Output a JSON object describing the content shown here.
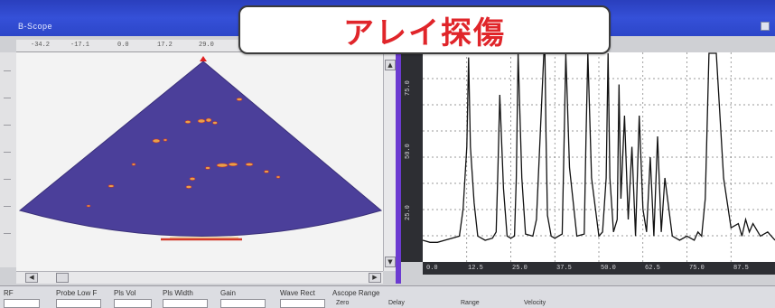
{
  "window": {
    "title": "B-Scope"
  },
  "caption": {
    "text": "アレイ探傷",
    "color": "#e0252a"
  },
  "scan_panel": {
    "ruler_ticks": [
      "-34.2",
      "-17.1",
      "0.0",
      "17.2",
      "29.0"
    ],
    "sector_color": "#4b3f9a",
    "scroll_up": "▲",
    "scroll_down": "▼",
    "scroll_left": "◀",
    "scroll_right": "▶"
  },
  "graph_panel": {
    "y_tick_labels": [
      "75.0",
      "50.0",
      "25.0"
    ],
    "x_tick_labels": [
      "0.0",
      "12.5",
      "25.0",
      "37.5",
      "50.0",
      "62.5",
      "75.0",
      "87.5"
    ]
  },
  "parameters": {
    "labels": [
      "RF",
      "Probe Low F",
      "Pls Vol",
      "Pls Width",
      "Gain",
      "Wave Rect",
      "Ascope Range"
    ],
    "sub_labels": [
      "Zero",
      "Delay",
      "Range",
      "Velocity"
    ]
  },
  "chart_data": {
    "type": "line",
    "x": [
      0,
      2,
      4,
      6,
      8,
      10,
      11,
      12,
      12.5,
      13,
      14,
      15,
      17,
      19,
      20,
      20.5,
      21,
      22,
      23,
      24,
      25,
      25.5,
      26,
      27,
      28,
      30,
      31,
      32,
      33,
      33.3,
      33.6,
      34,
      35,
      36,
      38,
      38.5,
      39,
      40,
      42,
      44,
      44.5,
      45,
      46,
      48,
      49,
      50,
      50.5,
      51,
      52,
      53,
      53.5,
      54,
      55,
      56,
      57,
      58,
      59,
      60,
      61,
      62,
      63,
      64,
      65,
      66,
      68,
      70,
      72,
      74,
      75,
      76,
      77,
      78,
      80,
      82,
      84,
      86,
      87,
      88,
      89,
      90,
      92,
      94,
      96
    ],
    "y": [
      10,
      9,
      9,
      10,
      11,
      12,
      25,
      55,
      98,
      55,
      28,
      12,
      10,
      11,
      14,
      45,
      80,
      35,
      12,
      11,
      12,
      40,
      100,
      40,
      13,
      12,
      20,
      60,
      100,
      100,
      60,
      22,
      12,
      11,
      13,
      55,
      100,
      45,
      12,
      13,
      60,
      100,
      40,
      12,
      14,
      40,
      100,
      40,
      14,
      20,
      85,
      30,
      70,
      20,
      55,
      12,
      70,
      25,
      14,
      50,
      12,
      60,
      14,
      40,
      12,
      10,
      12,
      10,
      14,
      12,
      30,
      100,
      100,
      40,
      16,
      18,
      12,
      20,
      14,
      18,
      12,
      14,
      10
    ]
  }
}
